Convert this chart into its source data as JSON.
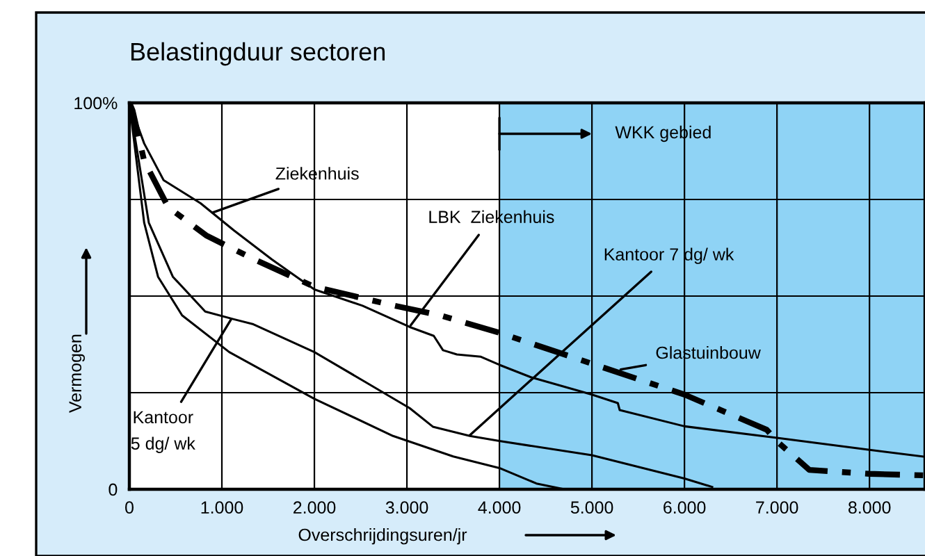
{
  "chart_data": {
    "type": "line",
    "title": "Belastingduur sectoren",
    "xlabel": "Overschrijdingsuren/jr",
    "ylabel": "Vermogen",
    "xlim": [
      0,
      8600
    ],
    "ylim": [
      0,
      100
    ],
    "xticks": [
      {
        "value": 0,
        "label": "0"
      },
      {
        "value": 1000,
        "label": "1.000"
      },
      {
        "value": 2000,
        "label": "2.000"
      },
      {
        "value": 3000,
        "label": "3.000"
      },
      {
        "value": 4000,
        "label": "4.000"
      },
      {
        "value": 5000,
        "label": "5.000"
      },
      {
        "value": 6000,
        "label": "6.000"
      },
      {
        "value": 7000,
        "label": "7.000"
      },
      {
        "value": 8000,
        "label": "8.000"
      }
    ],
    "yticks": [
      {
        "value": 0,
        "label": "0"
      },
      {
        "value": 25,
        "label": null
      },
      {
        "value": 50,
        "label": null
      },
      {
        "value": 75,
        "label": null
      },
      {
        "value": 100,
        "label": "100%"
      }
    ],
    "grid": true,
    "marker": "none",
    "bands": [
      {
        "axis": "x",
        "from": 4000,
        "to": 8600,
        "label": "WKK gebied",
        "color": "#8fd3f5"
      }
    ],
    "series": [
      {
        "color": "#000000",
        "line_style": "solid",
        "x": [
          0,
          160,
          370,
          770,
          1130,
          1540,
          2000,
          2520,
          3030,
          3290,
          3390,
          3540,
          3800,
          4000,
          4340,
          5000,
          5280,
          5300,
          6000,
          7000,
          8000,
          8600
        ],
        "values": [
          100,
          89.5,
          80,
          74,
          67,
          59.5,
          51.7,
          47.5,
          42,
          39.7,
          36,
          34.9,
          34.3,
          32.2,
          29,
          24.5,
          22.3,
          20.5,
          16.3,
          13.3,
          10.2,
          8.4
        ]
      },
      {
        "color": "#000000",
        "line_style": "dashdot",
        "x": [
          0,
          35,
          160,
          420,
          830,
          1340,
          2000,
          2850,
          3360,
          4000,
          5000,
          6000,
          6890,
          7000,
          7350,
          8000,
          8600
        ],
        "values": [
          100,
          98,
          85,
          73,
          65.7,
          59.6,
          52.4,
          47.6,
          45,
          40.5,
          32.5,
          24.5,
          15.4,
          12.4,
          5,
          4,
          3.6
        ]
      },
      {
        "color": "#000000",
        "line_style": "solid",
        "x": [
          0,
          210,
          470,
          820,
          1130,
          1340,
          2000,
          2520,
          3030,
          3280,
          3680,
          4000,
          5000,
          6000,
          6300
        ],
        "values": [
          100,
          69,
          55,
          46,
          44,
          42.7,
          35.5,
          28.2,
          21,
          16.2,
          13.8,
          12.5,
          8.8,
          2.8,
          0.6
        ]
      },
      {
        "color": "#000000",
        "line_style": "solid",
        "x": [
          0,
          160,
          310,
          570,
          1080,
          2000,
          2850,
          3500,
          4000,
          4400,
          4700
        ],
        "values": [
          100,
          69,
          55,
          45,
          35.5,
          23.4,
          13.8,
          8.5,
          5.5,
          1.5,
          0
        ]
      }
    ],
    "annotations": [
      {
        "text": "Ziekenhuis",
        "x": 900,
        "y": 71.6
      },
      {
        "text": "LBK  Ziekenhuis",
        "x": 3040,
        "y": 42.4
      },
      {
        "text": "Kantoor 7 dg/ wk",
        "x": 3680,
        "y": 14
      },
      {
        "text": "Glastuinbouw",
        "x": 5310,
        "y": 31
      },
      {
        "text": "Kantoor\n5 dg/ wk",
        "x": 1100,
        "y": 44
      }
    ]
  }
}
